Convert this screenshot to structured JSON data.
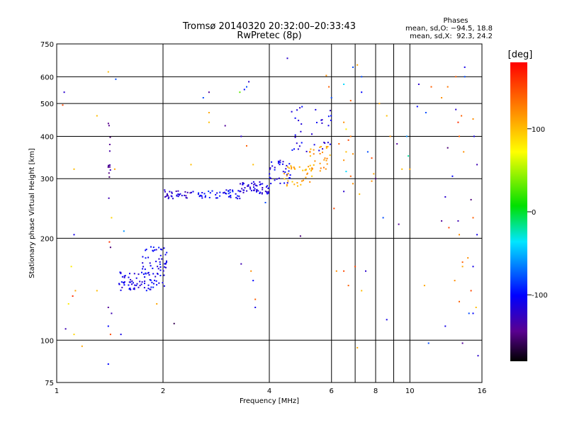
{
  "chart_data": {
    "type": "scatter",
    "title": "Tromsø 20140320 20:32:00–20:33:43",
    "subtitle": "RwPretec (8p)",
    "xlabel": "Frequency [MHz]",
    "ylabel": "Stationary phase Virtual Height [km]",
    "x_scale": "log",
    "y_scale": "log",
    "xlim": [
      1,
      16
    ],
    "ylim": [
      75,
      750
    ],
    "x_ticks": [
      1,
      2,
      4,
      6,
      8,
      10,
      16
    ],
    "x_tick_labels": [
      "1",
      "2",
      "4",
      "6",
      "8",
      "10",
      "16"
    ],
    "x_minor_ticks": [
      7,
      9
    ],
    "y_ticks": [
      75,
      100,
      200,
      300,
      400,
      500,
      600,
      750
    ],
    "y_tick_labels": [
      "75",
      "100",
      "200",
      "300",
      "400",
      "500",
      "600",
      "750"
    ],
    "grid": true,
    "phase_stats": {
      "heading": "Phases",
      "line_o": "mean, sd,O: −94.5, 18.8",
      "line_x": "mean, sd,X:  92.3, 24.2"
    },
    "colorbar": {
      "label": "[deg]",
      "range": [
        -180,
        180
      ],
      "ticks": [
        100,
        0,
        -100
      ],
      "tick_labels": [
        "100",
        "0",
        "-100"
      ]
    },
    "groups": [
      {
        "f_range": [
          1.5,
          1.75
        ],
        "h_range": [
          140,
          160
        ],
        "phase": -110,
        "count": 45
      },
      {
        "f_range": [
          1.75,
          2.05
        ],
        "h_range": [
          140,
          190
        ],
        "phase": -105,
        "count": 75
      },
      {
        "f_range": [
          2.02,
          2.45
        ],
        "h_range": [
          262,
          278
        ],
        "phase": -120,
        "count": 35
      },
      {
        "f_range": [
          2.45,
          3.3
        ],
        "h_range": [
          262,
          278
        ],
        "phase": -100,
        "count": 45
      },
      {
        "f_range": [
          3.3,
          4.0
        ],
        "h_range": [
          270,
          295
        ],
        "phase": -115,
        "count": 55
      },
      {
        "f_range": [
          4.0,
          4.6
        ],
        "h_range": [
          290,
          340
        ],
        "phase": -110,
        "count": 35
      },
      {
        "f_range": [
          4.4,
          5.3
        ],
        "h_range": [
          285,
          330
        ],
        "phase": 110,
        "count": 35
      },
      {
        "f_range": [
          5.2,
          6.0
        ],
        "h_range": [
          310,
          375
        ],
        "phase": 115,
        "count": 30
      },
      {
        "f_range": [
          4.6,
          6.0
        ],
        "h_range": [
          360,
          500
        ],
        "phase": -110,
        "count": 35
      },
      {
        "f_range": [
          1.4,
          1.42
        ],
        "h_range": [
          260,
          440
        ],
        "phase": -140,
        "count": 14
      }
    ],
    "points": [
      {
        "f": 1.05,
        "h": 540,
        "p": -120
      },
      {
        "f": 1.04,
        "h": 495,
        "p": 150
      },
      {
        "f": 1.12,
        "h": 320,
        "p": 100
      },
      {
        "f": 1.12,
        "h": 205,
        "p": -110
      },
      {
        "f": 1.4,
        "h": 620,
        "p": 100
      },
      {
        "f": 1.47,
        "h": 590,
        "p": -80
      },
      {
        "f": 1.3,
        "h": 460,
        "p": 100
      },
      {
        "f": 1.43,
        "h": 230,
        "p": 90
      },
      {
        "f": 1.55,
        "h": 210,
        "p": -60
      },
      {
        "f": 1.46,
        "h": 320,
        "p": 110
      },
      {
        "f": 1.41,
        "h": 195,
        "p": 160
      },
      {
        "f": 1.42,
        "h": 188,
        "p": -150
      },
      {
        "f": 1.1,
        "h": 165,
        "p": 80
      },
      {
        "f": 1.13,
        "h": 140,
        "p": 110
      },
      {
        "f": 1.11,
        "h": 135,
        "p": 160
      },
      {
        "f": 1.08,
        "h": 128,
        "p": 80
      },
      {
        "f": 1.06,
        "h": 108,
        "p": -130
      },
      {
        "f": 1.12,
        "h": 104,
        "p": 90
      },
      {
        "f": 1.18,
        "h": 96,
        "p": 110
      },
      {
        "f": 1.3,
        "h": 140,
        "p": 100
      },
      {
        "f": 1.4,
        "h": 110,
        "p": -100
      },
      {
        "f": 1.42,
        "h": 104,
        "p": 150
      },
      {
        "f": 1.52,
        "h": 104,
        "p": -110
      },
      {
        "f": 1.4,
        "h": 85,
        "p": -100
      },
      {
        "f": 1.4,
        "h": 125,
        "p": -140
      },
      {
        "f": 1.43,
        "h": 120,
        "p": -130
      },
      {
        "f": 1.92,
        "h": 128,
        "p": 110
      },
      {
        "f": 2.15,
        "h": 112,
        "p": -160
      },
      {
        "f": 2.7,
        "h": 540,
        "p": -140
      },
      {
        "f": 2.6,
        "h": 520,
        "p": -80
      },
      {
        "f": 2.7,
        "h": 470,
        "p": 110
      },
      {
        "f": 2.7,
        "h": 440,
        "p": 100
      },
      {
        "f": 3.0,
        "h": 430,
        "p": -140
      },
      {
        "f": 3.3,
        "h": 540,
        "p": 30
      },
      {
        "f": 3.4,
        "h": 550,
        "p": -100
      },
      {
        "f": 3.45,
        "h": 560,
        "p": -80
      },
      {
        "f": 3.5,
        "h": 580,
        "p": -120
      },
      {
        "f": 3.33,
        "h": 400,
        "p": -120
      },
      {
        "f": 3.6,
        "h": 330,
        "p": 100
      },
      {
        "f": 2.4,
        "h": 330,
        "p": 100
      },
      {
        "f": 3.45,
        "h": 375,
        "p": 140
      },
      {
        "f": 3.33,
        "h": 168,
        "p": -130
      },
      {
        "f": 3.55,
        "h": 160,
        "p": 120
      },
      {
        "f": 3.6,
        "h": 150,
        "p": -100
      },
      {
        "f": 3.65,
        "h": 132,
        "p": 140
      },
      {
        "f": 3.65,
        "h": 125,
        "p": -110
      },
      {
        "f": 3.9,
        "h": 255,
        "p": -80
      },
      {
        "f": 4.5,
        "h": 680,
        "p": -120
      },
      {
        "f": 4.9,
        "h": 203,
        "p": -150
      },
      {
        "f": 5.8,
        "h": 605,
        "p": 120
      },
      {
        "f": 5.9,
        "h": 560,
        "p": 140
      },
      {
        "f": 6.0,
        "h": 520,
        "p": -80
      },
      {
        "f": 6.5,
        "h": 570,
        "p": -40
      },
      {
        "f": 6.9,
        "h": 640,
        "p": -80
      },
      {
        "f": 7.1,
        "h": 650,
        "p": 110
      },
      {
        "f": 7.3,
        "h": 600,
        "p": -80
      },
      {
        "f": 7.3,
        "h": 540,
        "p": -100
      },
      {
        "f": 6.8,
        "h": 510,
        "p": 140
      },
      {
        "f": 6.5,
        "h": 440,
        "p": 120
      },
      {
        "f": 6.6,
        "h": 420,
        "p": 80
      },
      {
        "f": 6.8,
        "h": 400,
        "p": 130
      },
      {
        "f": 6.7,
        "h": 390,
        "p": 150
      },
      {
        "f": 6.3,
        "h": 380,
        "p": 140
      },
      {
        "f": 6.6,
        "h": 360,
        "p": 100
      },
      {
        "f": 6.9,
        "h": 355,
        "p": 120
      },
      {
        "f": 6.5,
        "h": 340,
        "p": 120
      },
      {
        "f": 6.6,
        "h": 315,
        "p": -40
      },
      {
        "f": 6.8,
        "h": 305,
        "p": 140
      },
      {
        "f": 6.9,
        "h": 290,
        "p": 120
      },
      {
        "f": 6.5,
        "h": 275,
        "p": -120
      },
      {
        "f": 7.2,
        "h": 270,
        "p": 100
      },
      {
        "f": 7.6,
        "h": 360,
        "p": -80
      },
      {
        "f": 7.8,
        "h": 345,
        "p": 150
      },
      {
        "f": 7.9,
        "h": 310,
        "p": 110
      },
      {
        "f": 7.8,
        "h": 295,
        "p": 120
      },
      {
        "f": 8.0,
        "h": 300,
        "p": -150
      },
      {
        "f": 8.2,
        "h": 500,
        "p": 110
      },
      {
        "f": 8.6,
        "h": 460,
        "p": 100
      },
      {
        "f": 8.8,
        "h": 400,
        "p": 120
      },
      {
        "f": 9.2,
        "h": 380,
        "p": -140
      },
      {
        "f": 9.5,
        "h": 320,
        "p": 100
      },
      {
        "f": 9.8,
        "h": 400,
        "p": -60
      },
      {
        "f": 9.9,
        "h": 350,
        "p": -20
      },
      {
        "f": 10.0,
        "h": 320,
        "p": 110
      },
      {
        "f": 8.4,
        "h": 230,
        "p": -80
      },
      {
        "f": 9.3,
        "h": 220,
        "p": -140
      },
      {
        "f": 6.1,
        "h": 245,
        "p": 150
      },
      {
        "f": 6.2,
        "h": 160,
        "p": 120
      },
      {
        "f": 6.5,
        "h": 160,
        "p": 150
      },
      {
        "f": 6.7,
        "h": 145,
        "p": 140
      },
      {
        "f": 7.0,
        "h": 165,
        "p": 150
      },
      {
        "f": 7.3,
        "h": 140,
        "p": 100
      },
      {
        "f": 7.5,
        "h": 160,
        "p": -120
      },
      {
        "f": 8.6,
        "h": 115,
        "p": -110
      },
      {
        "f": 7.1,
        "h": 95,
        "p": 110
      },
      {
        "f": 10.5,
        "h": 490,
        "p": -100
      },
      {
        "f": 11.5,
        "h": 560,
        "p": 140
      },
      {
        "f": 10.6,
        "h": 570,
        "p": -120
      },
      {
        "f": 11.1,
        "h": 470,
        "p": -80
      },
      {
        "f": 12.3,
        "h": 520,
        "p": 120
      },
      {
        "f": 12.8,
        "h": 560,
        "p": 130
      },
      {
        "f": 13.5,
        "h": 600,
        "p": 140
      },
      {
        "f": 14.3,
        "h": 640,
        "p": -110
      },
      {
        "f": 13.5,
        "h": 480,
        "p": -120
      },
      {
        "f": 14.0,
        "h": 460,
        "p": 140
      },
      {
        "f": 13.7,
        "h": 440,
        "p": 160
      },
      {
        "f": 12.8,
        "h": 370,
        "p": -150
      },
      {
        "f": 13.8,
        "h": 400,
        "p": 140
      },
      {
        "f": 14.2,
        "h": 360,
        "p": 120
      },
      {
        "f": 15.1,
        "h": 450,
        "p": 120
      },
      {
        "f": 15.2,
        "h": 400,
        "p": -110
      },
      {
        "f": 15.5,
        "h": 330,
        "p": -130
      },
      {
        "f": 14.9,
        "h": 260,
        "p": -150
      },
      {
        "f": 15.1,
        "h": 230,
        "p": 140
      },
      {
        "f": 12.3,
        "h": 225,
        "p": -140
      },
      {
        "f": 12.9,
        "h": 215,
        "p": 150
      },
      {
        "f": 12.6,
        "h": 265,
        "p": -120
      },
      {
        "f": 13.7,
        "h": 225,
        "p": -130
      },
      {
        "f": 15.5,
        "h": 205,
        "p": -110
      },
      {
        "f": 14.3,
        "h": 600,
        "p": -80
      },
      {
        "f": 13.2,
        "h": 305,
        "p": -100
      },
      {
        "f": 13.8,
        "h": 205,
        "p": 120
      },
      {
        "f": 14.1,
        "h": 170,
        "p": 140
      },
      {
        "f": 14.6,
        "h": 175,
        "p": 120
      },
      {
        "f": 14.1,
        "h": 165,
        "p": 110
      },
      {
        "f": 15.1,
        "h": 165,
        "p": -110
      },
      {
        "f": 13.4,
        "h": 150,
        "p": 120
      },
      {
        "f": 14.9,
        "h": 140,
        "p": 150
      },
      {
        "f": 15.4,
        "h": 125,
        "p": 100
      },
      {
        "f": 14.7,
        "h": 120,
        "p": -80
      },
      {
        "f": 15.1,
        "h": 120,
        "p": -100
      },
      {
        "f": 13.8,
        "h": 130,
        "p": 140
      },
      {
        "f": 11.0,
        "h": 145,
        "p": 110
      },
      {
        "f": 11.3,
        "h": 98,
        "p": -80
      },
      {
        "f": 14.1,
        "h": 98,
        "p": -140
      },
      {
        "f": 15.6,
        "h": 90,
        "p": -120
      },
      {
        "f": 12.6,
        "h": 110,
        "p": -110
      }
    ]
  }
}
